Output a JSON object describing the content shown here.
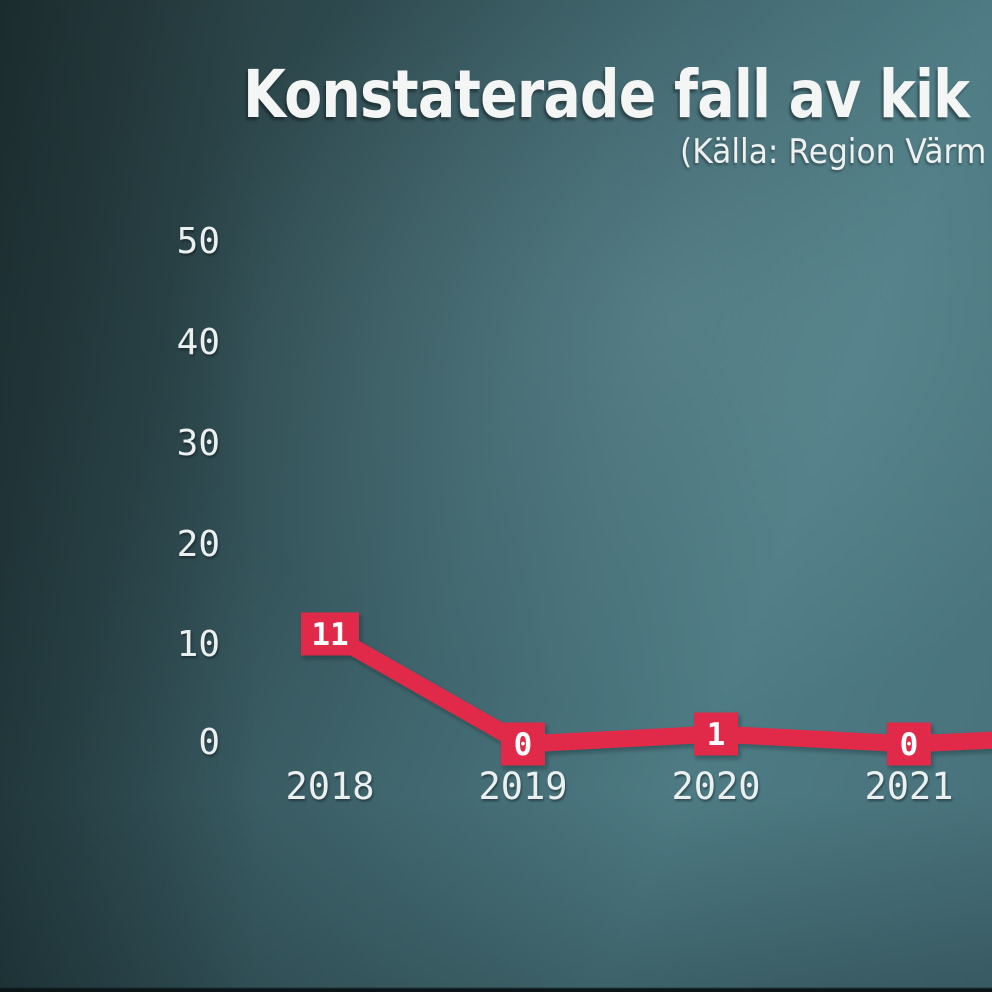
{
  "header": {
    "title": "Konstaterade fall av kik",
    "subtitle": "(Källa: Region Värm"
  },
  "chart_data": {
    "type": "line",
    "title": "Konstaterade fall av kik",
    "subtitle": "(Källa: Region Värm",
    "categories": [
      "2018",
      "2019",
      "2020",
      "2021"
    ],
    "values": [
      11,
      0,
      1,
      0
    ],
    "point_labels": [
      "11",
      "0",
      "1",
      "0"
    ],
    "xlabel": "",
    "ylabel": "",
    "ylim": [
      0,
      50
    ],
    "yticks": [
      "50",
      "40",
      "30",
      "20",
      "10",
      "0"
    ],
    "grid": false,
    "legend": "none",
    "line_color": "#e12b4a",
    "label_box_color": "#e12b4a",
    "label_text_color": "#ffffff",
    "line_continues_beyond_right_edge": true
  },
  "colors": {
    "background_dark": "#243638",
    "background_light": "#4e7b84",
    "text": "#f3f6f4",
    "accent_red": "#e12b4a",
    "bottom_edge": "#0b1517"
  }
}
